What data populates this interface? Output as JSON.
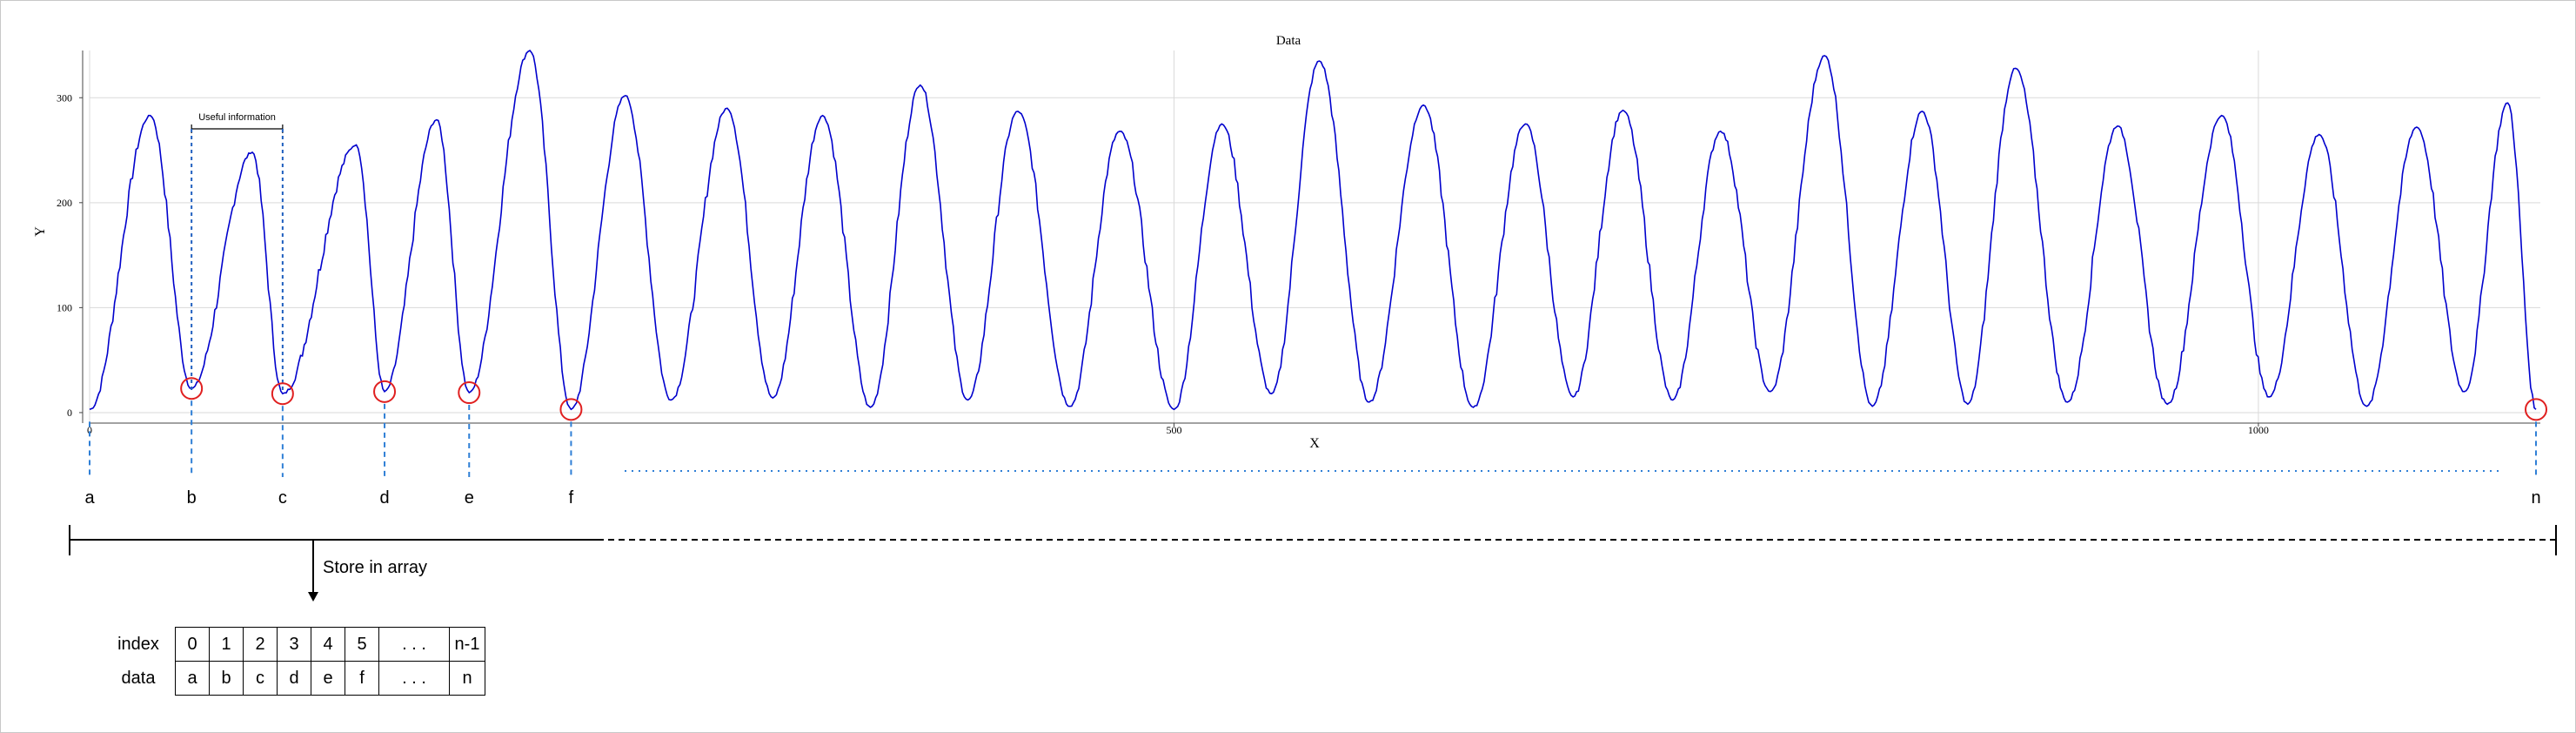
{
  "chart_data": {
    "type": "line",
    "title": "Data",
    "xlabel": "X",
    "ylabel": "Y",
    "xlim": [
      0,
      1130
    ],
    "ylim": [
      -10,
      345
    ],
    "x_ticks": [
      {
        "value": 0,
        "label": "0"
      },
      {
        "value": 500,
        "label": "500"
      },
      {
        "value": 1000,
        "label": "1000"
      }
    ],
    "y_ticks": [
      {
        "value": 0,
        "label": "0"
      },
      {
        "value": 100,
        "label": "100"
      },
      {
        "value": 200,
        "label": "200"
      },
      {
        "value": 300,
        "label": "300"
      }
    ],
    "grid": true,
    "series_color": "#0000cc",
    "peaks": [
      {
        "x": 28,
        "y": 283
      },
      {
        "x": 75,
        "y": 248
      },
      {
        "x": 123,
        "y": 255
      },
      {
        "x": 160,
        "y": 279
      },
      {
        "x": 203,
        "y": 345
      },
      {
        "x": 247,
        "y": 302
      },
      {
        "x": 294,
        "y": 290
      },
      {
        "x": 338,
        "y": 283
      },
      {
        "x": 383,
        "y": 312
      },
      {
        "x": 428,
        "y": 287
      },
      {
        "x": 475,
        "y": 268
      },
      {
        "x": 522,
        "y": 275
      },
      {
        "x": 567,
        "y": 335
      },
      {
        "x": 615,
        "y": 293
      },
      {
        "x": 662,
        "y": 275
      },
      {
        "x": 707,
        "y": 288
      },
      {
        "x": 752,
        "y": 268
      },
      {
        "x": 800,
        "y": 340
      },
      {
        "x": 845,
        "y": 287
      },
      {
        "x": 888,
        "y": 328
      },
      {
        "x": 935,
        "y": 273
      },
      {
        "x": 983,
        "y": 283
      },
      {
        "x": 1028,
        "y": 265
      },
      {
        "x": 1073,
        "y": 272
      },
      {
        "x": 1115,
        "y": 295
      }
    ],
    "troughs": [
      {
        "x": 0,
        "y": 3
      },
      {
        "x": 47,
        "y": 23
      },
      {
        "x": 89,
        "y": 18
      },
      {
        "x": 136,
        "y": 20
      },
      {
        "x": 175,
        "y": 19
      },
      {
        "x": 222,
        "y": 3
      },
      {
        "x": 268,
        "y": 12
      },
      {
        "x": 315,
        "y": 14
      },
      {
        "x": 360,
        "y": 5
      },
      {
        "x": 405,
        "y": 12
      },
      {
        "x": 452,
        "y": 6
      },
      {
        "x": 500,
        "y": 3
      },
      {
        "x": 545,
        "y": 18
      },
      {
        "x": 590,
        "y": 10
      },
      {
        "x": 638,
        "y": 5
      },
      {
        "x": 684,
        "y": 15
      },
      {
        "x": 730,
        "y": 12
      },
      {
        "x": 775,
        "y": 20
      },
      {
        "x": 822,
        "y": 6
      },
      {
        "x": 866,
        "y": 8
      },
      {
        "x": 912,
        "y": 10
      },
      {
        "x": 958,
        "y": 8
      },
      {
        "x": 1005,
        "y": 15
      },
      {
        "x": 1050,
        "y": 6
      },
      {
        "x": 1095,
        "y": 20
      },
      {
        "x": 1128,
        "y": 3
      }
    ],
    "annotation": {
      "label": "Useful information",
      "x_start": 47,
      "x_end": 89
    }
  },
  "markers": [
    {
      "label": "a",
      "x": 0,
      "y": 3,
      "circled": false
    },
    {
      "label": "b",
      "x": 47,
      "y": 23,
      "circled": true
    },
    {
      "label": "c",
      "x": 89,
      "y": 18,
      "circled": true
    },
    {
      "label": "d",
      "x": 136,
      "y": 20,
      "circled": true
    },
    {
      "label": "e",
      "x": 175,
      "y": 19,
      "circled": true
    },
    {
      "label": "f",
      "x": 222,
      "y": 3,
      "circled": true
    },
    {
      "label": "n",
      "x": 1128,
      "y": 3,
      "circled": true
    }
  ],
  "store_label": "Store in array",
  "array": {
    "index_label": "index",
    "data_label": "data",
    "indices": [
      "0",
      "1",
      "2",
      "3",
      "4",
      "5",
      ". . .",
      "n-1"
    ],
    "values": [
      "a",
      "b",
      "c",
      "d",
      "e",
      "f",
      ". . .",
      "n"
    ]
  },
  "colors": {
    "line": "#0000cc",
    "marker_circle": "#e02020",
    "dashed_marker": "#2f7fd6",
    "grid": "#d9d9d9"
  }
}
